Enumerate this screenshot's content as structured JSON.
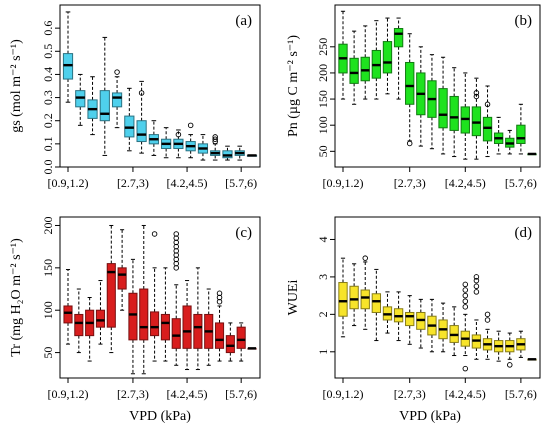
{
  "figure": {
    "xlabel": "VPD (kPa)"
  },
  "chart_data": [
    {
      "panel": "(a)",
      "type": "box",
      "ylabel": "gs (mol m⁻² s⁻¹)",
      "ylim": [
        0.0,
        0.7
      ],
      "yticks": [
        "0.0",
        "0.1",
        "0.2",
        "0.3",
        "0.4",
        "0.5",
        "0.6"
      ],
      "ytick_values": [
        0.0,
        0.1,
        0.2,
        0.3,
        0.4,
        0.5,
        0.6
      ],
      "xticks": [
        "[0.9,1.2)",
        "[2.7,3)",
        "[4.2,4.5)",
        "[5.7,6)"
      ],
      "color": "#4fd0ec",
      "boxes": [
        {
          "min": 0.28,
          "q1": 0.38,
          "median": 0.44,
          "q3": 0.49,
          "max": 0.67,
          "outliers": []
        },
        {
          "min": 0.18,
          "q1": 0.26,
          "median": 0.3,
          "q3": 0.33,
          "max": 0.4,
          "outliers": []
        },
        {
          "min": 0.14,
          "q1": 0.21,
          "median": 0.25,
          "q3": 0.29,
          "max": 0.39,
          "outliers": []
        },
        {
          "min": 0.05,
          "q1": 0.2,
          "median": 0.23,
          "q3": 0.33,
          "max": 0.56,
          "outliers": []
        },
        {
          "min": 0.17,
          "q1": 0.26,
          "median": 0.3,
          "q3": 0.32,
          "max": 0.39,
          "outliers": [
            0.41
          ]
        },
        {
          "min": 0.07,
          "q1": 0.13,
          "median": 0.17,
          "q3": 0.22,
          "max": 0.34,
          "outliers": []
        },
        {
          "min": 0.06,
          "q1": 0.11,
          "median": 0.14,
          "q3": 0.2,
          "max": 0.37,
          "outliers": [
            0.32
          ]
        },
        {
          "min": 0.05,
          "q1": 0.1,
          "median": 0.12,
          "q3": 0.14,
          "max": 0.2,
          "outliers": []
        },
        {
          "min": 0.04,
          "q1": 0.08,
          "median": 0.1,
          "q3": 0.12,
          "max": 0.17,
          "outliers": []
        },
        {
          "min": 0.04,
          "q1": 0.08,
          "median": 0.1,
          "q3": 0.12,
          "max": 0.16,
          "outliers": [
            0.14
          ]
        },
        {
          "min": 0.04,
          "q1": 0.07,
          "median": 0.09,
          "q3": 0.11,
          "max": 0.14,
          "outliers": [
            0.18
          ]
        },
        {
          "min": 0.03,
          "q1": 0.06,
          "median": 0.08,
          "q3": 0.1,
          "max": 0.14,
          "outliers": []
        },
        {
          "min": 0.03,
          "q1": 0.05,
          "median": 0.06,
          "q3": 0.07,
          "max": 0.1,
          "outliers": [
            0.11,
            0.12,
            0.13
          ]
        },
        {
          "min": 0.03,
          "q1": 0.04,
          "median": 0.05,
          "q3": 0.07,
          "max": 0.09,
          "outliers": []
        },
        {
          "min": 0.03,
          "q1": 0.05,
          "median": 0.06,
          "q3": 0.07,
          "max": 0.09,
          "outliers": []
        },
        {
          "min": 0.05,
          "q1": 0.05,
          "median": 0.05,
          "q3": 0.05,
          "max": 0.05,
          "outliers": []
        }
      ]
    },
    {
      "panel": "(b)",
      "type": "box",
      "ylabel": "Pn (µg C m⁻² s⁻¹)",
      "ylim": [
        20,
        330
      ],
      "yticks": [
        "50",
        "100",
        "150",
        "200",
        "250"
      ],
      "ytick_values": [
        50,
        100,
        150,
        200,
        250
      ],
      "xticks": [
        "[0.9,1.2)",
        "[2.7,3)",
        "[4.2,4.5)",
        "[5.7,6)"
      ],
      "color": "#1ee21e",
      "boxes": [
        {
          "min": 150,
          "q1": 200,
          "median": 228,
          "q3": 255,
          "max": 318,
          "outliers": []
        },
        {
          "min": 140,
          "q1": 180,
          "median": 200,
          "q3": 228,
          "max": 280,
          "outliers": []
        },
        {
          "min": 150,
          "q1": 185,
          "median": 205,
          "q3": 230,
          "max": 290,
          "outliers": []
        },
        {
          "min": 150,
          "q1": 190,
          "median": 215,
          "q3": 243,
          "max": 300,
          "outliers": []
        },
        {
          "min": 160,
          "q1": 200,
          "median": 220,
          "q3": 260,
          "max": 305,
          "outliers": []
        },
        {
          "min": 150,
          "q1": 250,
          "median": 275,
          "q3": 285,
          "max": 305,
          "outliers": []
        },
        {
          "min": 70,
          "q1": 140,
          "median": 175,
          "q3": 220,
          "max": 275,
          "outliers": [
            65
          ]
        },
        {
          "min": 60,
          "q1": 120,
          "median": 160,
          "q3": 200,
          "max": 250,
          "outliers": []
        },
        {
          "min": 55,
          "q1": 115,
          "median": 150,
          "q3": 185,
          "max": 235,
          "outliers": []
        },
        {
          "min": 45,
          "q1": 95,
          "median": 120,
          "q3": 170,
          "max": 230,
          "outliers": []
        },
        {
          "min": 40,
          "q1": 90,
          "median": 115,
          "q3": 155,
          "max": 210,
          "outliers": []
        },
        {
          "min": 35,
          "q1": 85,
          "median": 112,
          "q3": 135,
          "max": 200,
          "outliers": []
        },
        {
          "min": 35,
          "q1": 80,
          "median": 105,
          "q3": 135,
          "max": 190,
          "outliers": [
            155,
            162
          ]
        },
        {
          "min": 40,
          "q1": 70,
          "median": 95,
          "q3": 115,
          "max": 175,
          "outliers": [
            140
          ]
        },
        {
          "min": 45,
          "q1": 65,
          "median": 75,
          "q3": 85,
          "max": 115,
          "outliers": []
        },
        {
          "min": 45,
          "q1": 58,
          "median": 65,
          "q3": 75,
          "max": 90,
          "outliers": []
        },
        {
          "min": 45,
          "q1": 65,
          "median": 75,
          "q3": 100,
          "max": 140,
          "outliers": []
        },
        {
          "min": 45,
          "q1": 45,
          "median": 45,
          "q3": 45,
          "max": 45,
          "outliers": []
        }
      ]
    },
    {
      "panel": "(c)",
      "type": "box",
      "ylabel": "Tr (mg H₂O m⁻² s⁻¹)",
      "ylim": [
        20,
        210
      ],
      "yticks": [
        "50",
        "100",
        "150",
        "200"
      ],
      "ytick_values": [
        50,
        100,
        150,
        200
      ],
      "xticks": [
        "[0.9,1.2)",
        "[2.7,3)",
        "[4.2,4.5)",
        "[5.7,6)"
      ],
      "color": "#d81d1d",
      "boxes": [
        {
          "min": 60,
          "q1": 85,
          "median": 97,
          "q3": 105,
          "max": 148,
          "outliers": []
        },
        {
          "min": 50,
          "q1": 70,
          "median": 85,
          "q3": 95,
          "max": 125,
          "outliers": []
        },
        {
          "min": 40,
          "q1": 70,
          "median": 85,
          "q3": 100,
          "max": 115,
          "outliers": []
        },
        {
          "min": 60,
          "q1": 80,
          "median": 88,
          "q3": 100,
          "max": 135,
          "outliers": []
        },
        {
          "min": 50,
          "q1": 80,
          "median": 145,
          "q3": 155,
          "max": 200,
          "outliers": []
        },
        {
          "min": 100,
          "q1": 125,
          "median": 142,
          "q3": 150,
          "max": 195,
          "outliers": []
        },
        {
          "min": 25,
          "q1": 65,
          "median": 95,
          "q3": 120,
          "max": 160,
          "outliers": []
        },
        {
          "min": 25,
          "q1": 65,
          "median": 80,
          "q3": 125,
          "max": 200,
          "outliers": []
        },
        {
          "min": 40,
          "q1": 70,
          "median": 80,
          "q3": 98,
          "max": 150,
          "outliers": [
            190
          ]
        },
        {
          "min": 40,
          "q1": 65,
          "median": 85,
          "q3": 95,
          "max": 150,
          "outliers": []
        },
        {
          "min": 35,
          "q1": 55,
          "median": 70,
          "q3": 90,
          "max": 130,
          "outliers": [
            150,
            155,
            160,
            165,
            170,
            175,
            180,
            185,
            190
          ]
        },
        {
          "min": 30,
          "q1": 55,
          "median": 75,
          "q3": 105,
          "max": 135,
          "outliers": []
        },
        {
          "min": 30,
          "q1": 55,
          "median": 80,
          "q3": 95,
          "max": 150,
          "outliers": []
        },
        {
          "min": 35,
          "q1": 55,
          "median": 75,
          "q3": 95,
          "max": 125,
          "outliers": []
        },
        {
          "min": 40,
          "q1": 55,
          "median": 65,
          "q3": 85,
          "max": 105,
          "outliers": [
            110,
            115,
            120
          ]
        },
        {
          "min": 40,
          "q1": 50,
          "median": 58,
          "q3": 70,
          "max": 85,
          "outliers": []
        },
        {
          "min": 40,
          "q1": 55,
          "median": 65,
          "q3": 80,
          "max": 85,
          "outliers": []
        },
        {
          "min": 55,
          "q1": 55,
          "median": 55,
          "q3": 55,
          "max": 55,
          "outliers": []
        }
      ]
    },
    {
      "panel": "(d)",
      "type": "box",
      "ylabel": "WUEi",
      "ylim": [
        0.3,
        4.6
      ],
      "yticks": [
        "1",
        "2",
        "3",
        "4"
      ],
      "ytick_values": [
        1,
        2,
        3,
        4
      ],
      "xticks": [
        "[0.9,1.2)",
        "[2.7,3)",
        "[4.2,4.5)",
        "[5.7,6)"
      ],
      "color": "#f7e42a",
      "boxes": [
        {
          "min": 1.4,
          "q1": 1.95,
          "median": 2.35,
          "q3": 2.85,
          "max": 3.5,
          "outliers": []
        },
        {
          "min": 1.7,
          "q1": 2.15,
          "median": 2.4,
          "q3": 2.75,
          "max": 3.35,
          "outliers": []
        },
        {
          "min": 1.6,
          "q1": 2.15,
          "median": 2.45,
          "q3": 2.65,
          "max": 3.4,
          "outliers": [
            3.5
          ]
        },
        {
          "min": 1.3,
          "q1": 2.05,
          "median": 2.35,
          "q3": 2.55,
          "max": 3.2,
          "outliers": []
        },
        {
          "min": 1.5,
          "q1": 1.85,
          "median": 2.0,
          "q3": 2.2,
          "max": 2.6,
          "outliers": []
        },
        {
          "min": 1.3,
          "q1": 1.8,
          "median": 1.95,
          "q3": 2.15,
          "max": 2.6,
          "outliers": []
        },
        {
          "min": 1.2,
          "q1": 1.7,
          "median": 1.95,
          "q3": 2.05,
          "max": 2.5,
          "outliers": []
        },
        {
          "min": 1.1,
          "q1": 1.6,
          "median": 1.85,
          "q3": 2.05,
          "max": 2.4,
          "outliers": []
        },
        {
          "min": 1.0,
          "q1": 1.45,
          "median": 1.7,
          "q3": 1.95,
          "max": 2.4,
          "outliers": []
        },
        {
          "min": 1.0,
          "q1": 1.35,
          "median": 1.6,
          "q3": 1.85,
          "max": 2.3,
          "outliers": []
        },
        {
          "min": 0.9,
          "q1": 1.25,
          "median": 1.45,
          "q3": 1.7,
          "max": 2.2,
          "outliers": []
        },
        {
          "min": 0.9,
          "q1": 1.15,
          "median": 1.35,
          "q3": 1.55,
          "max": 2.0,
          "outliers": [
            0.55,
            2.2,
            2.35,
            2.5,
            2.65,
            2.8
          ]
        },
        {
          "min": 0.8,
          "q1": 1.1,
          "median": 1.3,
          "q3": 1.45,
          "max": 1.85,
          "outliers": [
            2.6,
            2.75,
            2.9,
            3.0
          ]
        },
        {
          "min": 0.8,
          "q1": 1.05,
          "median": 1.2,
          "q3": 1.35,
          "max": 1.6,
          "outliers": [
            1.85,
            2.0
          ]
        },
        {
          "min": 0.75,
          "q1": 1.0,
          "median": 1.15,
          "q3": 1.3,
          "max": 1.55,
          "outliers": []
        },
        {
          "min": 0.8,
          "q1": 1.0,
          "median": 1.15,
          "q3": 1.3,
          "max": 1.5,
          "outliers": [
            0.65
          ]
        },
        {
          "min": 0.85,
          "q1": 1.05,
          "median": 1.2,
          "q3": 1.35,
          "max": 1.55,
          "outliers": []
        },
        {
          "min": 0.8,
          "q1": 0.8,
          "median": 0.8,
          "q3": 0.8,
          "max": 0.8,
          "outliers": []
        }
      ]
    }
  ]
}
